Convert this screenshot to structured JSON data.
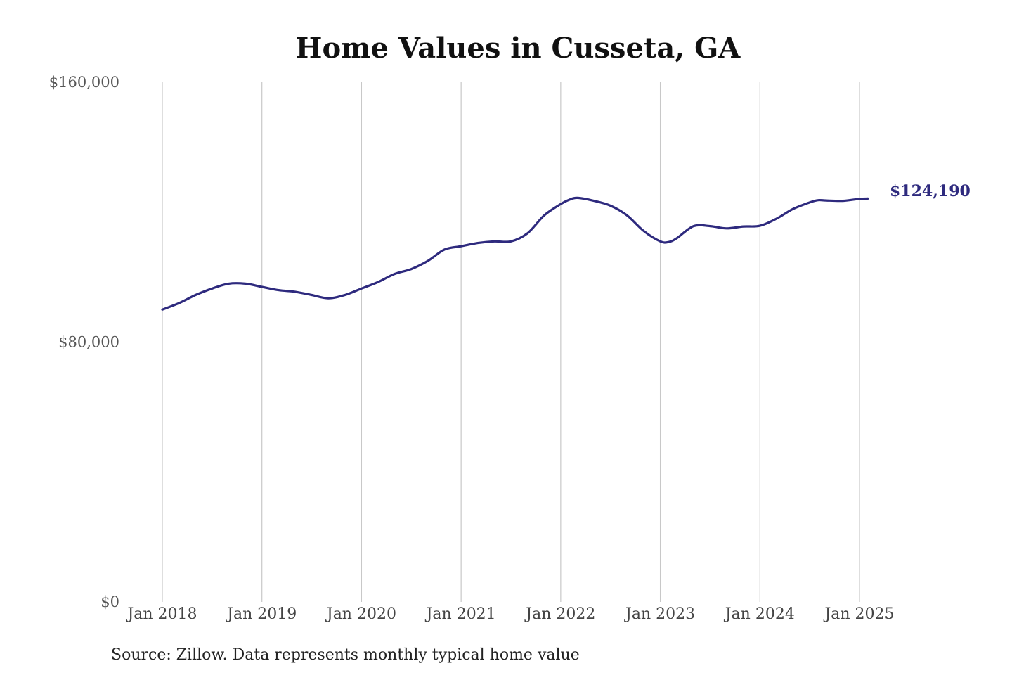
{
  "chart_data": {
    "type": "line",
    "title": "Home Values in Cusseta, GA",
    "source": "Source: Zillow. Data represents monthly typical home value",
    "ylim": [
      0,
      160000
    ],
    "y_ticks": [
      {
        "value": 0,
        "label": "$0"
      },
      {
        "value": 80000,
        "label": "$80,000"
      },
      {
        "value": 160000,
        "label": "$160,000"
      }
    ],
    "x_ticks": [
      {
        "value": "2018-01",
        "label": "Jan 2018"
      },
      {
        "value": "2019-01",
        "label": "Jan 2019"
      },
      {
        "value": "2020-01",
        "label": "Jan 2020"
      },
      {
        "value": "2021-01",
        "label": "Jan 2021"
      },
      {
        "value": "2022-01",
        "label": "Jan 2022"
      },
      {
        "value": "2023-01",
        "label": "Jan 2023"
      },
      {
        "value": "2024-01",
        "label": "Jan 2024"
      },
      {
        "value": "2025-01",
        "label": "Jan 2025"
      }
    ],
    "x_grid": true,
    "y_grid": false,
    "line_color": "#2e2a7e",
    "end_label": "$124,190",
    "series": [
      {
        "x": [
          "2018-01",
          "2018-03",
          "2018-05",
          "2018-07",
          "2018-09",
          "2018-11",
          "2019-01",
          "2019-03",
          "2019-05",
          "2019-07",
          "2019-09",
          "2019-11",
          "2020-01",
          "2020-03",
          "2020-05",
          "2020-07",
          "2020-09",
          "2020-11",
          "2021-01",
          "2021-03",
          "2021-05",
          "2021-07",
          "2021-09",
          "2021-11",
          "2022-01",
          "2022-02",
          "2022-03",
          "2022-05",
          "2022-07",
          "2022-09",
          "2022-11",
          "2023-01",
          "2023-02",
          "2023-03",
          "2023-05",
          "2023-07",
          "2023-09",
          "2023-11",
          "2024-01",
          "2024-03",
          "2024-05",
          "2024-07",
          "2024-08",
          "2024-09",
          "2024-11",
          "2025-01",
          "2025-02"
        ],
        "values": [
          90000,
          92000,
          94500,
          96500,
          98000,
          98000,
          97000,
          96000,
          95500,
          94500,
          93500,
          94500,
          96500,
          98500,
          101000,
          102500,
          105000,
          108500,
          109500,
          110500,
          111000,
          111000,
          113500,
          119000,
          122500,
          123800,
          124400,
          123500,
          122000,
          119000,
          114200,
          111000,
          110800,
          112000,
          115700,
          115700,
          115000,
          115600,
          115800,
          118000,
          121000,
          123000,
          123700,
          123600,
          123500,
          124100,
          124190
        ]
      }
    ]
  }
}
